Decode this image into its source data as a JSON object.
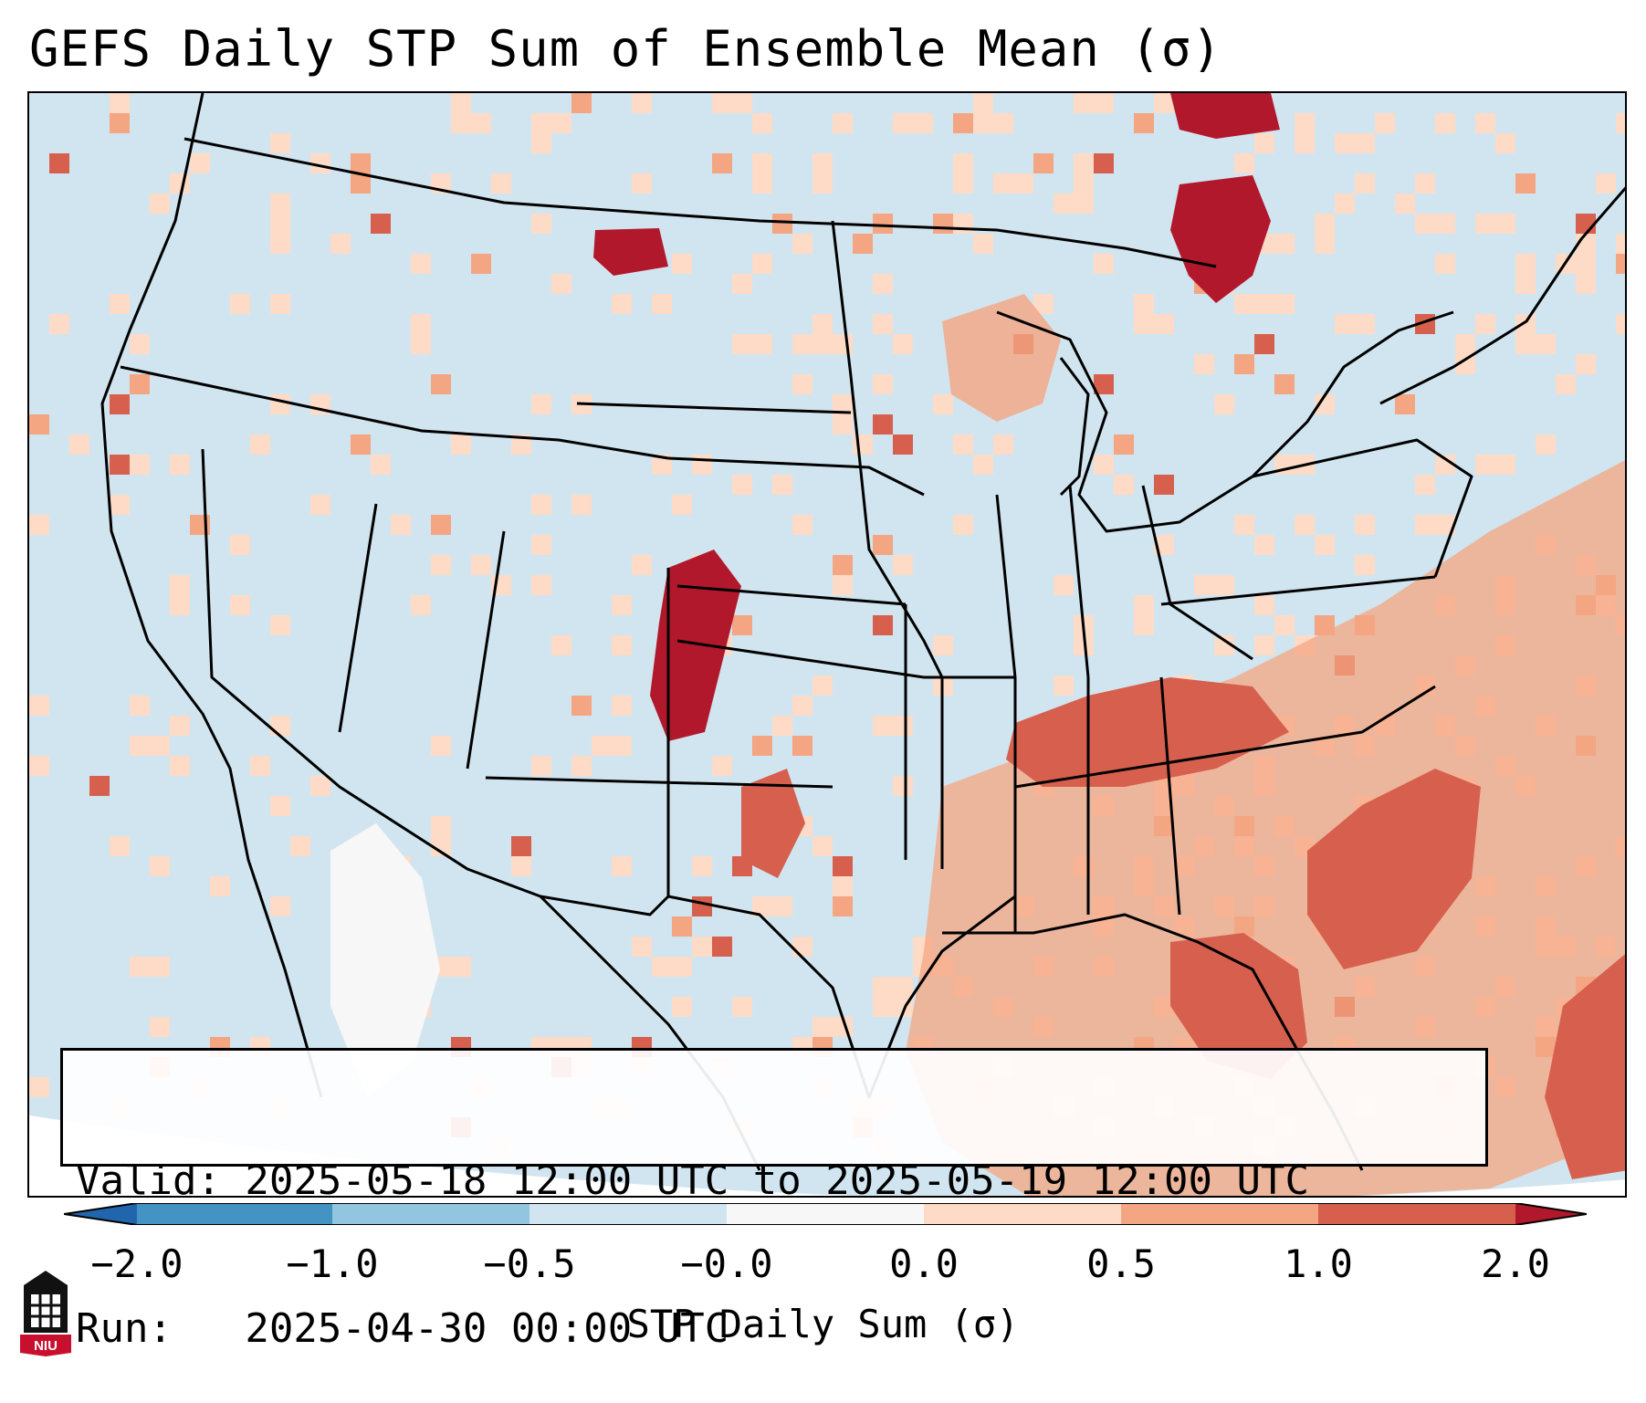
{
  "title": "GEFS Daily STP Sum of Ensemble Mean (σ)",
  "info": {
    "valid_line": "Valid: 2025-05-18 12:00 UTC to 2025-05-19 12:00 UTC",
    "run_line": "Run:   2025-04-30 00:00 UTC"
  },
  "colorbar": {
    "label": "STP Daily Sum (σ)",
    "ticks": [
      "−2.0",
      "−1.0",
      "−0.5",
      "−0.0",
      "0.0",
      "0.5",
      "1.0",
      "2.0"
    ],
    "colors": {
      "lt_neg2": "#2166ac",
      "neg2_neg1": "#4393c3",
      "neg1_neg05": "#92c5de",
      "neg05_0": "#d1e5f0",
      "zero": "#f7f7f7",
      "pos0_05": "#fddbc7",
      "pos05_1": "#f4a582",
      "pos1_2": "#d6604d",
      "gt_2": "#b2182b"
    }
  },
  "map": {
    "background_color": "#d1e5f0",
    "outline_color": "#000000",
    "regions": [
      {
        "name": "northern-plains-high",
        "category": "gt_2"
      },
      {
        "name": "colorado-kansas-high",
        "category": "gt_2"
      },
      {
        "name": "tennessee-valley-elevated",
        "category": "pos1_2"
      },
      {
        "name": "southeast-coast-elevated",
        "category": "pos1_2"
      },
      {
        "name": "ontario-quebec-high",
        "category": "gt_2"
      },
      {
        "name": "gulf-atlantic-moderate",
        "category": "pos05_1"
      },
      {
        "name": "baja-neutral",
        "category": "zero"
      }
    ]
  },
  "logo": {
    "text": "NIU"
  }
}
